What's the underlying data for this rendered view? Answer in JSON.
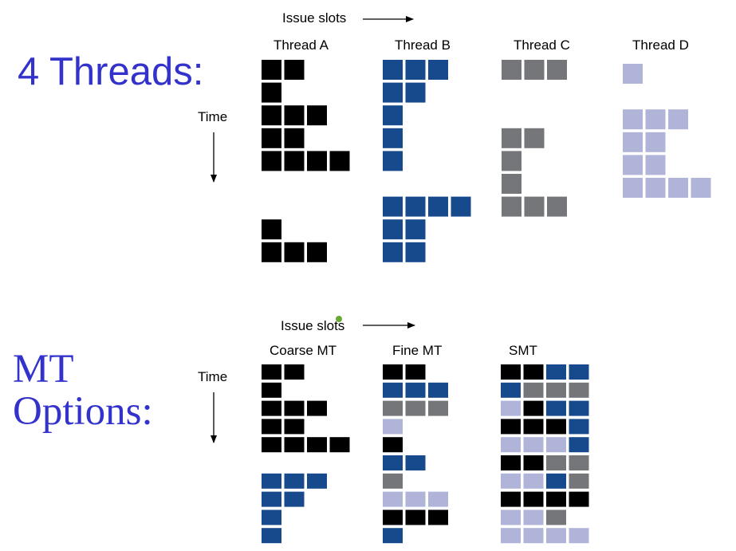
{
  "colors": {
    "A": "#000000",
    "B": "#174a8c",
    "C": "#75767a",
    "D": "#b0b4d8",
    "title": "#3333cc",
    "dot": "#66aa33"
  },
  "top": {
    "title": "4 Threads:",
    "issue_label": "Issue slots",
    "time_label": "Time",
    "threads": [
      {
        "label": "Thread A",
        "color_key": "A",
        "rows": [
          [
            1,
            1,
            0,
            0
          ],
          [
            1,
            0,
            0,
            0
          ],
          [
            1,
            1,
            1,
            0
          ],
          [
            1,
            1,
            0,
            0
          ],
          [
            1,
            1,
            1,
            1
          ],
          [
            0,
            0,
            0,
            0
          ],
          [
            0,
            0,
            0,
            0
          ],
          [
            1,
            0,
            0,
            0
          ],
          [
            1,
            1,
            1,
            0
          ]
        ]
      },
      {
        "label": "Thread B",
        "color_key": "B",
        "rows": [
          [
            1,
            1,
            1,
            0
          ],
          [
            1,
            1,
            0,
            0
          ],
          [
            1,
            0,
            0,
            0
          ],
          [
            1,
            0,
            0,
            0
          ],
          [
            1,
            0,
            0,
            0
          ],
          [
            0,
            0,
            0,
            0
          ],
          [
            1,
            1,
            1,
            1
          ],
          [
            1,
            1,
            0,
            0
          ],
          [
            1,
            1,
            0,
            0
          ]
        ]
      },
      {
        "label": "Thread C",
        "color_key": "C",
        "rows": [
          [
            1,
            1,
            1,
            0
          ],
          [
            0,
            0,
            0,
            0
          ],
          [
            0,
            0,
            0,
            0
          ],
          [
            1,
            1,
            0,
            0
          ],
          [
            1,
            0,
            0,
            0
          ],
          [
            1,
            0,
            0,
            0
          ],
          [
            1,
            1,
            1,
            0
          ]
        ]
      },
      {
        "label": "Thread D",
        "color_key": "D",
        "rows": [
          [
            1,
            0,
            0,
            0
          ],
          [
            0,
            0,
            0,
            0
          ],
          [
            1,
            1,
            1,
            0
          ],
          [
            1,
            1,
            0,
            0
          ],
          [
            1,
            1,
            0,
            0
          ],
          [
            1,
            1,
            1,
            1
          ]
        ]
      }
    ]
  },
  "bottom": {
    "title_line1": "MT",
    "title_line2": "Options:",
    "issue_label": "Issue slots",
    "time_label": "Time",
    "options": [
      {
        "label": "Coarse MT",
        "rows": [
          [
            "A",
            "A",
            "",
            ""
          ],
          [
            "A",
            "",
            "",
            ""
          ],
          [
            "A",
            "A",
            "A",
            ""
          ],
          [
            "A",
            "A",
            "",
            ""
          ],
          [
            "A",
            "A",
            "A",
            "A"
          ],
          [
            "",
            "",
            "",
            ""
          ],
          [
            "B",
            "B",
            "B",
            ""
          ],
          [
            "B",
            "B",
            "",
            ""
          ],
          [
            "B",
            "",
            "",
            ""
          ],
          [
            "B",
            "",
            "",
            ""
          ]
        ]
      },
      {
        "label": "Fine MT",
        "rows": [
          [
            "A",
            "A",
            "",
            ""
          ],
          [
            "B",
            "B",
            "B",
            ""
          ],
          [
            "C",
            "C",
            "C",
            ""
          ],
          [
            "D",
            "",
            "",
            ""
          ],
          [
            "A",
            "",
            "",
            ""
          ],
          [
            "B",
            "B",
            "",
            ""
          ],
          [
            "C",
            "",
            "",
            ""
          ],
          [
            "D",
            "D",
            "D",
            ""
          ],
          [
            "A",
            "A",
            "A",
            ""
          ],
          [
            "B",
            "",
            "",
            ""
          ]
        ]
      },
      {
        "label": "SMT",
        "rows": [
          [
            "A",
            "A",
            "B",
            "B"
          ],
          [
            "B",
            "C",
            "C",
            "C"
          ],
          [
            "D",
            "A",
            "B",
            "B"
          ],
          [
            "A",
            "A",
            "A",
            "B"
          ],
          [
            "D",
            "D",
            "D",
            "B"
          ],
          [
            "A",
            "A",
            "C",
            "C"
          ],
          [
            "D",
            "D",
            "B",
            "C"
          ],
          [
            "A",
            "A",
            "A",
            "A"
          ],
          [
            "D",
            "D",
            "C",
            ""
          ],
          [
            "D",
            "D",
            "D",
            "D"
          ]
        ]
      }
    ]
  }
}
